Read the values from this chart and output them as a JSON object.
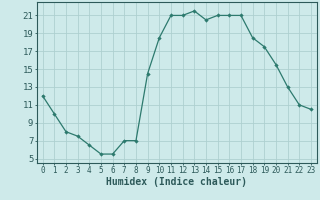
{
  "x": [
    0,
    1,
    2,
    3,
    4,
    5,
    6,
    7,
    8,
    9,
    10,
    11,
    12,
    13,
    14,
    15,
    16,
    17,
    18,
    19,
    20,
    21,
    22,
    23
  ],
  "y": [
    12,
    10,
    8,
    7.5,
    6.5,
    5.5,
    5.5,
    7,
    7,
    14.5,
    18.5,
    21,
    21,
    21.5,
    20.5,
    21,
    21,
    21,
    18.5,
    17.5,
    15.5,
    13,
    11,
    10.5
  ],
  "line_color": "#2d7a6e",
  "marker": "D",
  "marker_size": 2.2,
  "bg_color": "#ceeaea",
  "grid_color": "#aed0d0",
  "xlabel": "Humidex (Indice chaleur)",
  "xlim": [
    -0.5,
    23.5
  ],
  "ylim": [
    4.5,
    22.5
  ],
  "yticks": [
    5,
    7,
    9,
    11,
    13,
    15,
    17,
    19,
    21
  ],
  "xticks": [
    0,
    1,
    2,
    3,
    4,
    5,
    6,
    7,
    8,
    9,
    10,
    11,
    12,
    13,
    14,
    15,
    16,
    17,
    18,
    19,
    20,
    21,
    22,
    23
  ],
  "xtick_labels": [
    "0",
    "1",
    "2",
    "3",
    "4",
    "5",
    "6",
    "7",
    "8",
    "9",
    "10",
    "11",
    "12",
    "13",
    "14",
    "15",
    "16",
    "17",
    "18",
    "19",
    "20",
    "21",
    "22",
    "23"
  ],
  "text_color": "#2d5a5a",
  "xlabel_fontsize": 7.0,
  "ytick_fontsize": 6.5,
  "xtick_fontsize": 5.5,
  "line_width": 0.9
}
